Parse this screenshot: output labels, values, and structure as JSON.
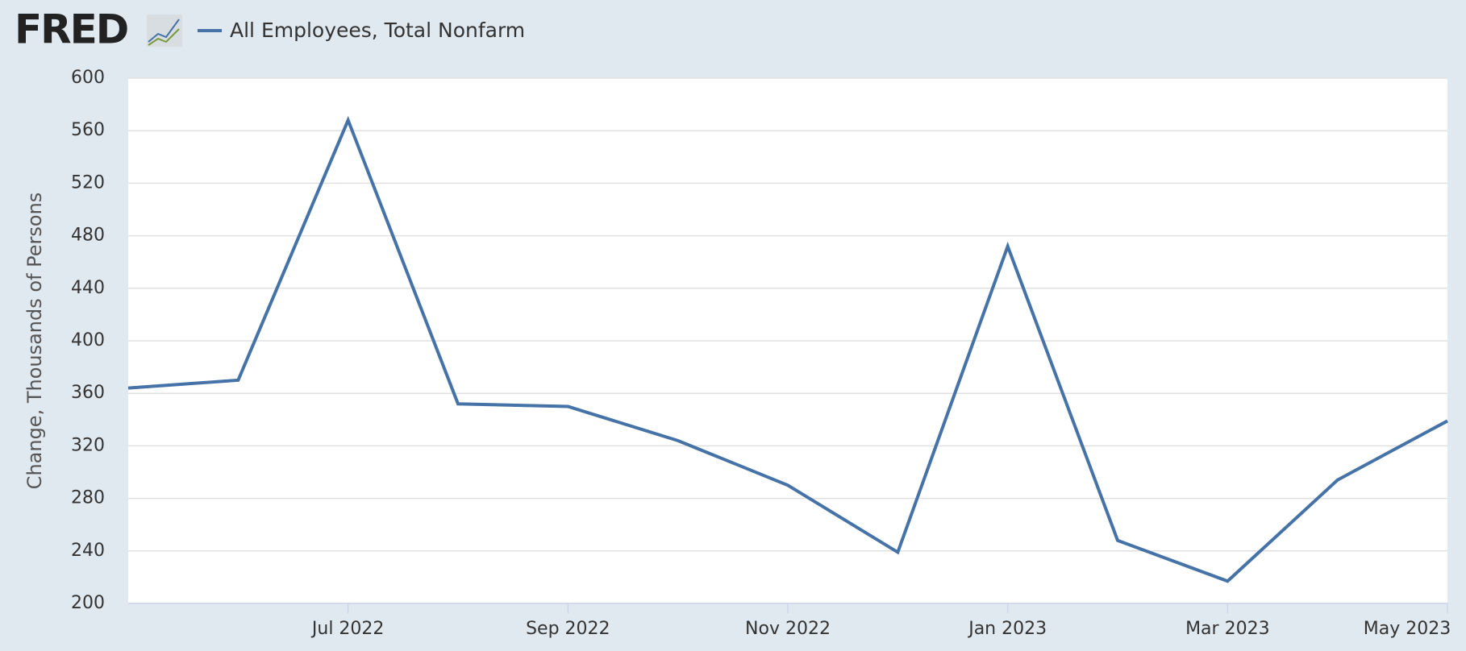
{
  "logo": "FRED",
  "chart_data": {
    "type": "line",
    "y_axis_label": "Change, Thousands of Persons",
    "categories": [
      null,
      null,
      "Jul 2022",
      null,
      "Sep 2022",
      null,
      "Nov 2022",
      null,
      "Jan 2023",
      null,
      "Mar 2023",
      null,
      "May 2023"
    ],
    "series": [
      {
        "name": "All Employees, Total Nonfarm",
        "color": "#4572a7",
        "values": [
          364,
          370,
          568,
          352,
          350,
          324,
          290,
          239,
          472,
          248,
          217,
          294,
          339
        ]
      }
    ],
    "ylim": [
      200,
      600
    ],
    "yticks": [
      200,
      240,
      280,
      320,
      360,
      400,
      440,
      480,
      520,
      560,
      600
    ],
    "grid": true
  }
}
